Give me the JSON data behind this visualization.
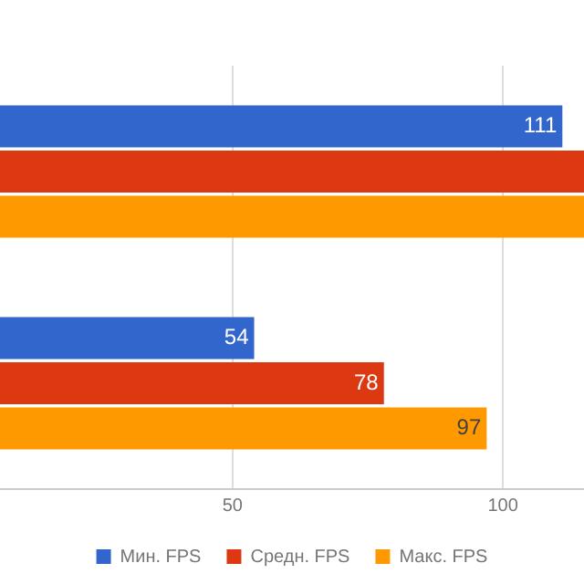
{
  "chart_data": {
    "type": "bar",
    "orientation": "horizontal",
    "categories": [
      null,
      null
    ],
    "series": [
      {
        "name": "Мин. FPS",
        "color": "#3366cc",
        "values": [
          111,
          54
        ],
        "value_labels": [
          "111",
          "54"
        ]
      },
      {
        "name": "Средн. FPS",
        "color": "#dc3912",
        "values": [
          115,
          78
        ],
        "value_labels": [
          null,
          "78"
        ]
      },
      {
        "name": "Макс. FPS",
        "color": "#ff9900",
        "values": [
          115,
          97
        ],
        "value_labels": [
          null,
          "97"
        ]
      }
    ],
    "xlim": [
      7,
      115
    ],
    "xticks": [
      50,
      100
    ],
    "grid": "x",
    "legend": "bottom",
    "tick_labels": "x"
  }
}
